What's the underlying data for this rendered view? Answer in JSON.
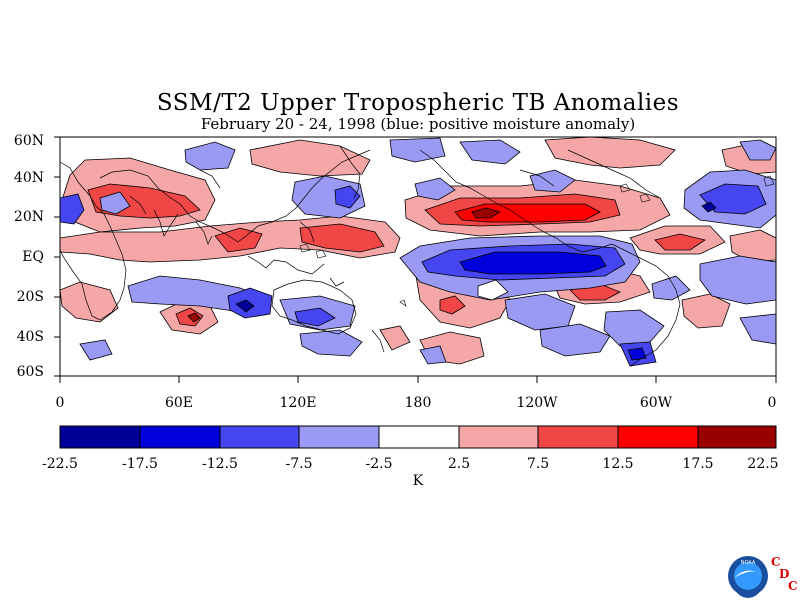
{
  "title": "SSM/T2 Upper Tropospheric TB Anomalies",
  "subtitle": "February 20 - 24, 1998 (blue: positive moisture anomaly)",
  "lat_labels": [
    "60N",
    "40N",
    "20N",
    "EQ",
    "20S",
    "40S",
    "60S"
  ],
  "lon_labels": [
    "0",
    "60E",
    "120E",
    "180",
    "120W",
    "60W",
    "0"
  ],
  "colorbar": {
    "unit": "K",
    "ticks": [
      "-22.5",
      "-17.5",
      "-12.5",
      "-7.5",
      "-2.5",
      "2.5",
      "7.5",
      "12.5",
      "17.5",
      "22.5"
    ],
    "colors": [
      "#000099",
      "#0000dd",
      "#4646f0",
      "#9a9af5",
      "#ffffff",
      "#f5a7a7",
      "#f04646",
      "#ff0000",
      "#990000"
    ]
  },
  "logo": {
    "noaa_text": "NOAA",
    "cdc_letters": [
      "C",
      "D",
      "C"
    ],
    "colors": {
      "ring": "#1a4fa0",
      "inner": "#3399ff",
      "gull": "#ffffff",
      "cdc": "#dd0000"
    }
  },
  "map": {
    "lat_range": [
      -60,
      60
    ],
    "lon_range": [
      0,
      360
    ],
    "anomaly_colors": {
      "strong_negative": "#0000dd",
      "negative": "#4646f0",
      "weak_negative": "#9a9af5",
      "weak_positive": "#f5a7a7",
      "positive": "#f04646",
      "strong_positive": "#ff0000",
      "extreme_positive": "#990000",
      "extreme_negative": "#000099"
    }
  }
}
